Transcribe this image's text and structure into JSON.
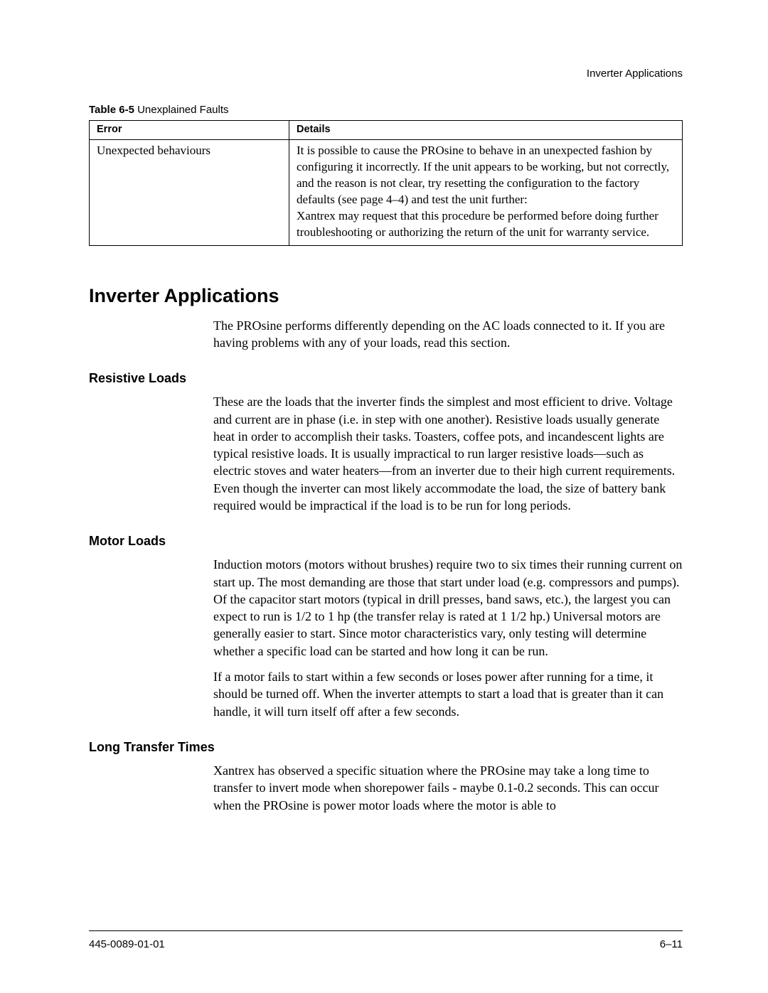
{
  "running_header": "Inverter Applications",
  "table": {
    "caption_label": "Table 6-5",
    "caption_title": "Unexplained Faults",
    "headers": {
      "error": "Error",
      "details": "Details"
    },
    "row": {
      "error": "Unexpected behaviours",
      "details_p1": "It is possible to cause the PROsine to behave in an unexpected fashion by configuring it incorrectly. If the unit appears to be working, but not correctly, and the reason is not clear, try resetting the configuration to the factory defaults (see page 4–4) and test the unit further:",
      "details_p2": "Xantrex may request that this procedure be performed before doing further troubleshooting or authorizing the return of the unit for warranty service."
    }
  },
  "section_title": "Inverter Applications",
  "intro": "The PROsine performs differently depending on the AC loads connected to it. If you are having problems with any of your loads, read this section.",
  "resistive": {
    "heading": "Resistive Loads",
    "body": "These are the loads that the inverter finds the simplest and most efficient to drive. Voltage and current are in phase (i.e. in step with one another). Resistive loads usually generate heat in order to accomplish their tasks. Toasters, coffee pots, and incandescent lights are typical resistive loads. It is usually impractical to run larger resistive loads—such as electric stoves and water heaters—from an inverter due to their high current requirements. Even though the inverter can most likely accommodate the load, the size of battery bank required would be impractical if the load is to be run for long periods."
  },
  "motor": {
    "heading": "Motor Loads",
    "p1": "Induction motors (motors without brushes) require two to six times their running current on start up. The most demanding are those that start under load (e.g. compressors and pumps). Of the capacitor start motors (typical in drill presses, band saws, etc.), the largest you can expect to run is 1/2 to 1 hp (the transfer relay is rated at 1 1/2 hp.) Universal motors are generally easier to start. Since motor characteristics vary, only testing will determine whether a specific load can be started and how long it can be run.",
    "p2": "If a motor fails to start within a few seconds or loses power after running for a time, it should be turned off. When the inverter attempts to start a load that is greater than it can handle, it will turn itself off after a few seconds."
  },
  "transfer": {
    "heading": "Long Transfer Times",
    "body": "Xantrex has observed a specific situation where the PROsine may take a long time to transfer to invert mode when shorepower fails - maybe 0.1-0.2 seconds. This can occur when the PROsine is power motor loads where the motor is able to"
  },
  "footer": {
    "docnum": "445-0089-01-01",
    "pagenum": "6–11"
  }
}
